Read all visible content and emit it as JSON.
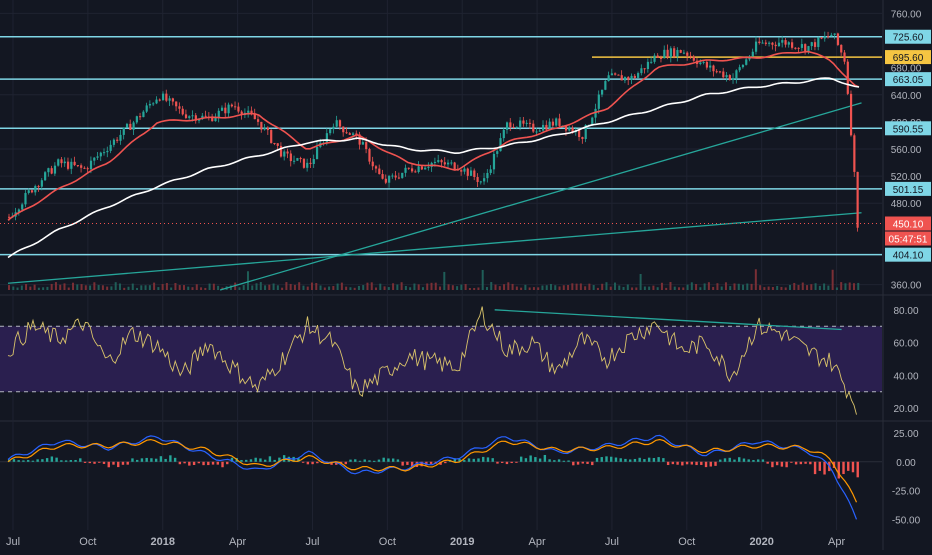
{
  "chart_data": [
    {
      "type": "line",
      "panel": "price",
      "title": "",
      "xlabel": "",
      "ylabel": "",
      "x_ticks": [
        "Jul",
        "Oct",
        "2018",
        "Apr",
        "Jul",
        "Oct",
        "2019",
        "Apr",
        "Jul",
        "Oct",
        "2020",
        "Apr"
      ],
      "y_ticks": [
        760,
        640,
        560,
        520,
        480,
        360
      ],
      "ylim": [
        352,
        768
      ],
      "grid": true,
      "price_series": {
        "name": "",
        "color": "#26a69a",
        "down_color": "#ef5350",
        "x_month_index": [
          0,
          1,
          2,
          3,
          4,
          5,
          6,
          7,
          8,
          9,
          10,
          11,
          12,
          13,
          14,
          15,
          16,
          17,
          18,
          19,
          20,
          21,
          22,
          23,
          24,
          25,
          26,
          27,
          28,
          29,
          30,
          31,
          32,
          33,
          33.5,
          33.8,
          34.0
        ],
        "values": [
          460,
          505,
          540,
          530,
          565,
          600,
          640,
          612,
          605,
          625,
          600,
          550,
          535,
          600,
          575,
          510,
          530,
          540,
          535,
          510,
          600,
          590,
          600,
          580,
          665,
          665,
          700,
          705,
          680,
          665,
          715,
          718,
          710,
          730,
          690,
          560,
          450
        ]
      },
      "moving_averages": [
        {
          "name": "",
          "color": "#ef5350",
          "x_month_index": [
            0,
            2,
            4,
            6,
            8,
            10,
            12,
            14,
            16,
            18,
            20,
            22,
            24,
            26,
            28,
            30,
            32,
            33,
            34
          ],
          "values": [
            455,
            500,
            540,
            600,
            605,
            612,
            560,
            580,
            540,
            530,
            570,
            590,
            620,
            680,
            690,
            695,
            705,
            690,
            650
          ]
        },
        {
          "name": "",
          "color": "#ffffff",
          "x_month_index": [
            0,
            2,
            4,
            6,
            8,
            10,
            12,
            14,
            16,
            18,
            20,
            22,
            24,
            26,
            28,
            30,
            32,
            33,
            34
          ],
          "values": [
            400,
            440,
            475,
            505,
            530,
            550,
            570,
            575,
            560,
            555,
            565,
            580,
            600,
            620,
            640,
            652,
            660,
            665,
            650
          ]
        }
      ],
      "horizontal_levels": [
        {
          "value": 725.6,
          "label": "725.60",
          "color": "#7fd6e6"
        },
        {
          "value": 695.6,
          "label": "695.60",
          "color": "#f5c542",
          "partial": true
        },
        {
          "value": 663.05,
          "label": "663.05",
          "color": "#7fd6e6"
        },
        {
          "value": 590.55,
          "label": "590.55",
          "color": "#7fd6e6"
        },
        {
          "value": 501.15,
          "label": "501.15",
          "color": "#7fd6e6"
        },
        {
          "value": 404.1,
          "label": "404.10",
          "color": "#7fd6e6"
        }
      ],
      "partially_hidden_labels": [
        "680.00",
        "600.00"
      ],
      "trendlines": [
        {
          "color": "#26a69a",
          "from": {
            "month_index": 8.5,
            "value": 352
          },
          "to": {
            "month_index": 34.2,
            "value": 628
          }
        },
        {
          "color": "#26a69a",
          "from": {
            "month_index": 0,
            "value": 362
          },
          "to": {
            "month_index": 34.2,
            "value": 466
          }
        }
      ],
      "last_price": {
        "label": "450.10",
        "value": 450.1,
        "color": "#ef5350"
      },
      "countdown": {
        "label": "05:47:51",
        "color": "#ef5350"
      },
      "volume_note": "small volume bars along the bottom of the price panel"
    },
    {
      "type": "line",
      "panel": "rsi",
      "title": "",
      "y_ticks": [
        80,
        60,
        40,
        20
      ],
      "ylim": [
        14,
        86
      ],
      "band": {
        "upper": 70,
        "lower": 30,
        "fill": "#2a1f4f"
      },
      "series": [
        {
          "name": "",
          "color": "#d9c36a",
          "x_month_index": [
            0,
            1,
            2,
            3,
            4,
            5,
            6,
            7,
            8,
            9,
            10,
            11,
            12,
            13,
            14,
            15,
            16,
            17,
            18,
            19,
            20,
            21,
            22,
            23,
            24,
            25,
            26,
            27,
            28,
            29,
            30,
            31,
            32,
            33,
            33.5,
            34
          ],
          "values": [
            55,
            70,
            62,
            72,
            48,
            66,
            58,
            40,
            60,
            45,
            32,
            50,
            70,
            60,
            30,
            40,
            52,
            48,
            45,
            78,
            55,
            60,
            42,
            62,
            50,
            64,
            72,
            55,
            60,
            40,
            70,
            66,
            55,
            48,
            35,
            22
          ]
        }
      ],
      "trendline": {
        "color": "#26a69a",
        "from": {
          "month_index": 19.5,
          "value": 80
        },
        "to": {
          "month_index": 33.4,
          "value": 68
        }
      }
    },
    {
      "type": "line",
      "panel": "macd",
      "title": "",
      "y_ticks": [
        25.0,
        0.0,
        -25.0,
        -50.0
      ],
      "y_tick_labels": [
        "25.00",
        "0.00",
        "-25.00",
        "-50.00"
      ],
      "ylim": [
        -55,
        32
      ],
      "series": [
        {
          "name": "",
          "color": "#2962ff",
          "x_month_index": [
            0,
            2,
            4,
            6,
            8,
            10,
            12,
            14,
            16,
            18,
            20,
            22,
            24,
            26,
            28,
            30,
            32,
            33,
            34
          ],
          "values": [
            2,
            18,
            12,
            22,
            6,
            -8,
            8,
            -10,
            -5,
            4,
            22,
            8,
            14,
            22,
            6,
            18,
            10,
            -5,
            -50
          ]
        },
        {
          "name": "",
          "color": "#ff9800",
          "x_month_index": [
            0,
            2,
            4,
            6,
            8,
            10,
            12,
            14,
            16,
            18,
            20,
            22,
            24,
            26,
            28,
            30,
            32,
            33,
            34
          ],
          "values": [
            0,
            14,
            14,
            18,
            10,
            -4,
            4,
            -6,
            -6,
            1,
            18,
            10,
            12,
            18,
            9,
            14,
            12,
            2,
            -35
          ]
        }
      ],
      "histogram": {
        "up_color": "#26a69a",
        "down_color": "#ef5350",
        "values": [
          2,
          4,
          3,
          -2,
          -4,
          4,
          5,
          -3,
          -4,
          3,
          4,
          6,
          -2,
          -3,
          2,
          3,
          -4,
          -3,
          3,
          4,
          -2,
          5,
          2,
          -3,
          4,
          3,
          4,
          -3,
          -4,
          4,
          3,
          -4,
          -2,
          -10,
          -18
        ]
      }
    }
  ]
}
